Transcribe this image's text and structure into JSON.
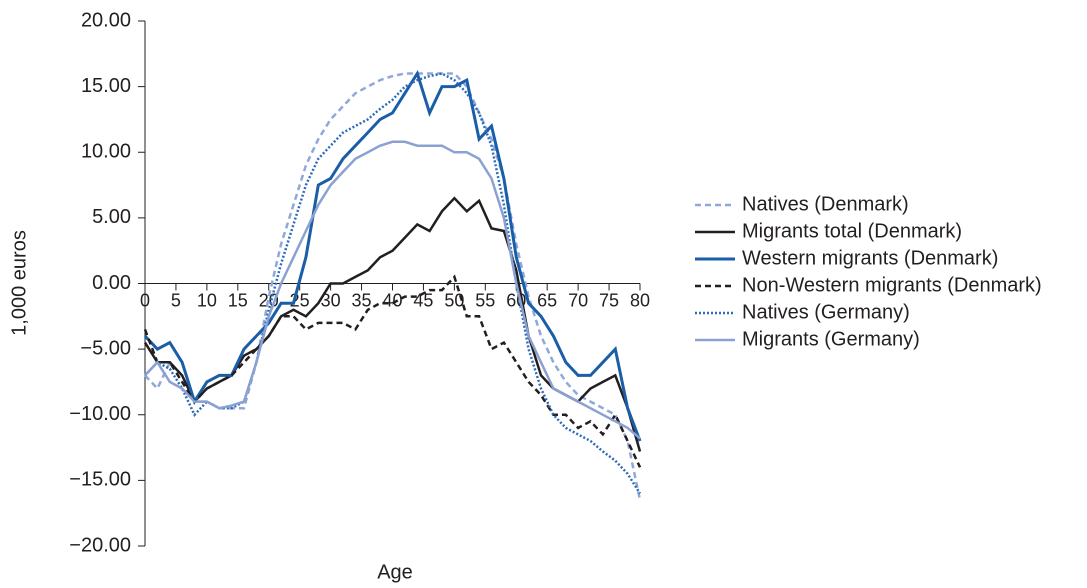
{
  "chart_data": {
    "type": "line",
    "x_label": "Age",
    "y_label": "1,000 euros",
    "x": [
      0,
      2,
      4,
      6,
      8,
      10,
      12,
      14,
      16,
      18,
      20,
      22,
      24,
      26,
      28,
      30,
      32,
      34,
      36,
      38,
      40,
      42,
      44,
      46,
      48,
      50,
      52,
      54,
      56,
      58,
      60,
      62,
      64,
      66,
      68,
      70,
      72,
      74,
      76,
      78,
      80
    ],
    "xlim": [
      0,
      80
    ],
    "xticks": [
      0,
      5,
      10,
      15,
      20,
      25,
      30,
      35,
      40,
      45,
      50,
      55,
      60,
      65,
      70,
      75,
      80
    ],
    "ylim": [
      -20,
      20
    ],
    "yticks": [
      {
        "value": -20,
        "label": "−20.00"
      },
      {
        "value": -15,
        "label": "−15.00"
      },
      {
        "value": -10,
        "label": "−10.00"
      },
      {
        "value": -5,
        "label": "−5.00"
      },
      {
        "value": 0,
        "label": "0.00"
      },
      {
        "value": 5,
        "label": "5.00"
      },
      {
        "value": 10,
        "label": "10.00"
      },
      {
        "value": 15,
        "label": "15.00"
      },
      {
        "value": 20,
        "label": "20.00"
      }
    ],
    "legend": "right",
    "series": [
      {
        "name": "Natives (Denmark)",
        "color": "#8fa8dc",
        "dash": "dashed",
        "values": [
          -7,
          -8,
          -6,
          -7,
          -9,
          -9,
          -9.5,
          -9.5,
          -9.5,
          -6,
          -1,
          3,
          6,
          9,
          11,
          12.5,
          13.5,
          14.5,
          15,
          15.5,
          15.8,
          16,
          16,
          16,
          16,
          16,
          15,
          13,
          11,
          8,
          3,
          -1,
          -4,
          -6,
          -7.5,
          -8.5,
          -9,
          -9.5,
          -10,
          -12,
          -16.5
        ]
      },
      {
        "name": "Migrants total (Denmark)",
        "color": "#231f20",
        "dash": "solid",
        "values": [
          -4.5,
          -6,
          -6,
          -7,
          -9,
          -8,
          -7.5,
          -7,
          -5.5,
          -5,
          -4,
          -2.5,
          -2,
          -2.5,
          -1.5,
          0,
          0,
          0.5,
          1,
          2,
          2.5,
          3.5,
          4.5,
          4,
          5.5,
          6.5,
          5.5,
          6.3,
          4.2,
          4,
          1,
          -4,
          -7,
          -8,
          -8.5,
          -9,
          -8,
          -7.5,
          -7,
          -9.5,
          -12.8
        ]
      },
      {
        "name": "Western migrants (Denmark)",
        "color": "#1a5ea8",
        "dash": "solid",
        "values": [
          -4,
          -5,
          -4.5,
          -6,
          -9,
          -7.5,
          -7,
          -7,
          -5,
          -4,
          -3,
          -1.5,
          -1.5,
          2,
          7.5,
          8,
          9.5,
          10.5,
          11.5,
          12.5,
          13,
          14.5,
          16,
          13,
          15,
          15,
          15.5,
          11,
          12,
          8,
          2,
          -1.5,
          -2.5,
          -4,
          -6,
          -7,
          -7,
          -6,
          -5,
          -9.5,
          -12
        ]
      },
      {
        "name": "Non-Western migrants (Denmark)",
        "color": "#231f20",
        "dash": "dashed",
        "values": [
          -3.5,
          -6,
          -6,
          -7.5,
          -9,
          -8,
          -7.5,
          -7,
          -6,
          -5,
          -4,
          -2.5,
          -2.5,
          -3.5,
          -3,
          -3,
          -3,
          -3.5,
          -2,
          -1.5,
          -1.5,
          -1,
          -1,
          -0.5,
          -0.5,
          0.5,
          -2.5,
          -2.5,
          -5,
          -4.5,
          -6,
          -7.5,
          -8.5,
          -10,
          -10,
          -11,
          -10.5,
          -11.5,
          -10,
          -12,
          -14
        ]
      },
      {
        "name": "Natives (Germany)",
        "color": "#2c6cb8",
        "dash": "dotted",
        "values": [
          -7,
          -6,
          -6.5,
          -8,
          -10,
          -9,
          -9.5,
          -9.5,
          -9,
          -6,
          -2,
          1.5,
          4.5,
          7.5,
          9.5,
          10.5,
          11.5,
          12,
          12.5,
          13.3,
          14,
          15,
          15.5,
          15.8,
          16,
          15.5,
          14.5,
          13,
          10.5,
          6,
          0,
          -5,
          -8,
          -10,
          -11,
          -11.5,
          -12,
          -12.8,
          -13.5,
          -14.5,
          -16
        ]
      },
      {
        "name": "Migrants (Germany)",
        "color": "#8aa1d1",
        "dash": "solid",
        "values": [
          -7,
          -6,
          -7.5,
          -8,
          -9,
          -9,
          -9.5,
          -9.3,
          -9,
          -6,
          -2.5,
          0,
          2,
          4,
          6,
          7.5,
          8.5,
          9.5,
          10,
          10.5,
          10.8,
          10.8,
          10.5,
          10.5,
          10.5,
          10,
          10,
          9.5,
          8,
          5,
          0,
          -4,
          -6,
          -8,
          -8.5,
          -9,
          -9.5,
          -10,
          -10.5,
          -11,
          -11.8
        ]
      }
    ]
  }
}
